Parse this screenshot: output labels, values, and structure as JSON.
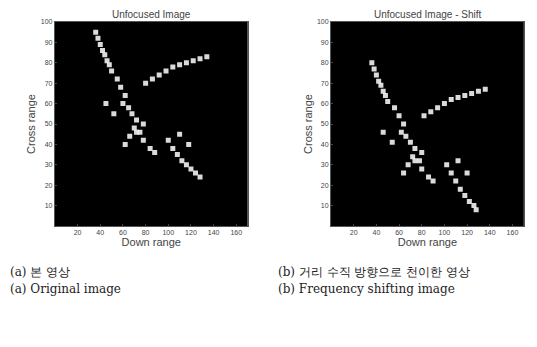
{
  "chart_data": [
    {
      "type": "scatter",
      "title": "Unfocused Image",
      "x_label": "Down range",
      "y_label": "Cross range",
      "x": [
        36,
        38,
        40,
        42,
        44,
        46,
        48,
        50,
        55,
        58,
        62,
        60,
        65,
        68,
        72,
        70,
        75,
        78,
        80,
        86,
        92,
        98,
        104,
        110,
        116,
        122,
        128,
        134,
        62,
        66,
        72,
        78,
        84,
        88,
        100,
        104,
        108,
        112,
        116,
        120,
        124,
        128,
        110,
        118,
        45,
        52
      ],
      "y": [
        95,
        92,
        89,
        86,
        84,
        81,
        79,
        76,
        72,
        68,
        64,
        60,
        58,
        55,
        52,
        48,
        46,
        50,
        70,
        72,
        74,
        76,
        78,
        79,
        80,
        81,
        82,
        83,
        40,
        44,
        46,
        42,
        38,
        36,
        42,
        38,
        35,
        32,
        30,
        28,
        26,
        24,
        45,
        40,
        60,
        55
      ],
      "color": "#f2f2f2",
      "xlim": [
        0,
        170
      ],
      "ylim": [
        0,
        100
      ],
      "xticks": [
        20,
        40,
        60,
        80,
        100,
        120,
        140,
        160
      ],
      "yticks": [
        10,
        20,
        30,
        40,
        50,
        60,
        70,
        80,
        90,
        100
      ],
      "grid": false
    },
    {
      "type": "scatter",
      "title": "Unfocused Image - Shift",
      "x_label": "Down range",
      "y_label": "Cross range",
      "x": [
        36,
        38,
        40,
        42,
        44,
        46,
        48,
        50,
        56,
        60,
        64,
        62,
        66,
        70,
        74,
        72,
        78,
        80,
        82,
        88,
        94,
        100,
        106,
        112,
        118,
        124,
        130,
        136,
        64,
        68,
        74,
        80,
        86,
        90,
        102,
        106,
        110,
        114,
        118,
        122,
        126,
        128,
        112,
        120,
        46,
        54
      ],
      "y": [
        80,
        77,
        74,
        71,
        69,
        66,
        64,
        61,
        58,
        54,
        50,
        46,
        44,
        41,
        38,
        34,
        32,
        36,
        54,
        56,
        58,
        60,
        62,
        63,
        64,
        65,
        66,
        67,
        26,
        30,
        32,
        28,
        24,
        22,
        30,
        26,
        22,
        18,
        15,
        12,
        10,
        8,
        32,
        26,
        46,
        41
      ],
      "color": "#f2f2f2",
      "xlim": [
        0,
        170
      ],
      "ylim": [
        0,
        100
      ],
      "xticks": [
        20,
        40,
        60,
        80,
        100,
        120,
        140,
        160
      ],
      "yticks": [
        10,
        20,
        30,
        40,
        50,
        60,
        70,
        80,
        90,
        100
      ],
      "grid": false
    }
  ],
  "captions": [
    [
      "(a) 본 영상",
      "(a) Original image"
    ],
    [
      "(b) 거리 수직 방향으로 천이한 영상",
      "(b) Frequency shifting image"
    ]
  ]
}
